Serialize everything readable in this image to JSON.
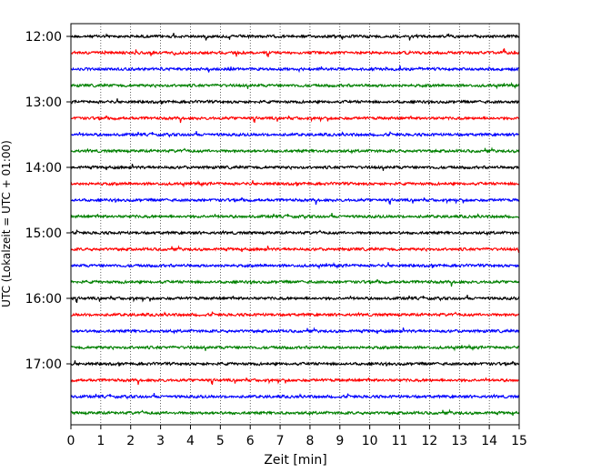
{
  "chart_data": {
    "type": "line",
    "title": "",
    "xlabel": "Zeit  [min]",
    "ylabel": "UTC (Lokalzeit = UTC + 01:00)",
    "xlim": [
      0,
      15
    ],
    "x_ticks": [
      "0",
      "1",
      "2",
      "3",
      "4",
      "5",
      "6",
      "7",
      "8",
      "9",
      "10",
      "11",
      "12",
      "13",
      "14",
      "15"
    ],
    "y_ticks": [
      "12:00",
      "13:00",
      "14:00",
      "15:00",
      "16:00",
      "17:00"
    ],
    "row_start": "12:00",
    "row_interval_minutes": 15,
    "row_count": 24,
    "colors": [
      "#000000",
      "#ff0000",
      "#0000ff",
      "#008000"
    ],
    "grid": "vertical dotted lines at each minute",
    "legend": "none"
  }
}
